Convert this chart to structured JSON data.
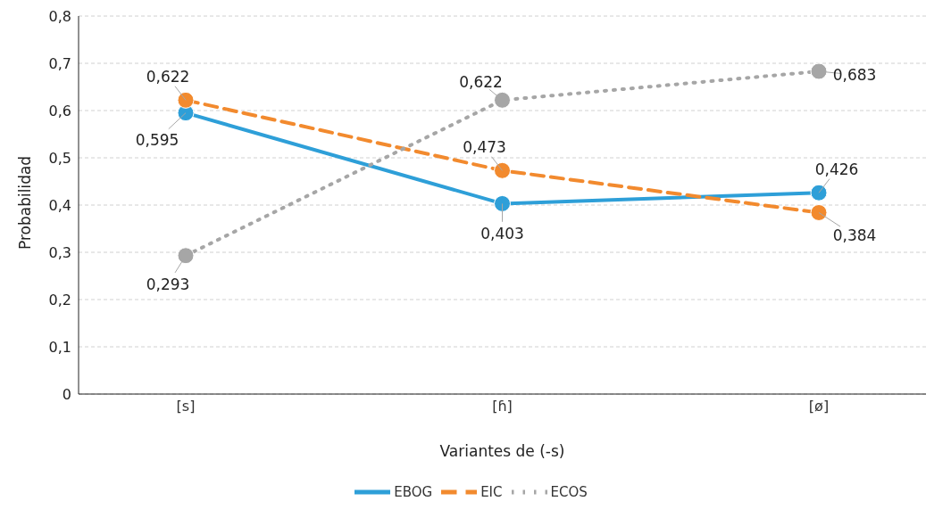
{
  "chart_data": {
    "type": "line",
    "xlabel": "Variantes de (-s)",
    "ylabel": "Probabilidad",
    "categories": [
      "[s]",
      "[ɦ]",
      "[ø]"
    ],
    "series": [
      {
        "name": "EBOG",
        "color": "#2e9fd8",
        "values": [
          0.595,
          0.403,
          0.426
        ],
        "value_labels": [
          "0,595",
          "0,403",
          "0,426"
        ],
        "line_style": "solid"
      },
      {
        "name": "EIC",
        "color": "#f28a2e",
        "values": [
          0.622,
          0.473,
          0.384
        ],
        "value_labels": [
          "0,622",
          "0,473",
          "0,384"
        ],
        "line_style": "dashed"
      },
      {
        "name": "ECOS",
        "color": "#a6a6a6",
        "values": [
          0.293,
          0.622,
          0.683
        ],
        "value_labels": [
          "0,293",
          "0,622",
          "0,683"
        ],
        "line_style": "dotted"
      }
    ],
    "ylim": [
      0,
      0.8
    ],
    "yticks": [
      {
        "value": 0,
        "label": "0"
      },
      {
        "value": 0.1,
        "label": "0,1"
      },
      {
        "value": 0.2,
        "label": "0,2"
      },
      {
        "value": 0.3,
        "label": "0,3"
      },
      {
        "value": 0.4,
        "label": "0,4"
      },
      {
        "value": 0.5,
        "label": "0,5"
      },
      {
        "value": 0.6,
        "label": "0,6"
      },
      {
        "value": 0.7,
        "label": "0,7"
      },
      {
        "value": 0.8,
        "label": "0,8"
      }
    ],
    "grid": "y",
    "legend": "bottom",
    "marker": "circle"
  }
}
